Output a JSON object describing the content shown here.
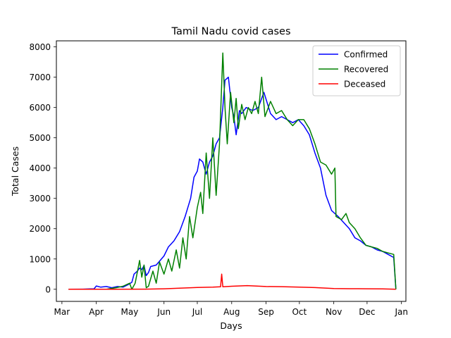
{
  "chart_data": {
    "type": "line",
    "title": "Tamil Nadu covid cases",
    "xlabel": "Days",
    "ylabel": "Total Cases",
    "xlim": [
      "2020-02-25",
      "2021-01-05"
    ],
    "ylim": [
      -400,
      8200
    ],
    "x_ticks": [
      {
        "label": "Mar",
        "date": "2020-03-01"
      },
      {
        "label": "Apr",
        "date": "2020-04-01"
      },
      {
        "label": "May",
        "date": "2020-05-01"
      },
      {
        "label": "Jun",
        "date": "2020-06-01"
      },
      {
        "label": "Jul",
        "date": "2020-07-01"
      },
      {
        "label": "Aug",
        "date": "2020-08-01"
      },
      {
        "label": "Sep",
        "date": "2020-09-01"
      },
      {
        "label": "Oct",
        "date": "2020-10-01"
      },
      {
        "label": "Nov",
        "date": "2020-11-01"
      },
      {
        "label": "Dec",
        "date": "2020-12-01"
      },
      {
        "label": "Jan",
        "date": "2021-01-01"
      }
    ],
    "y_ticks": [
      0,
      1000,
      2000,
      3000,
      4000,
      5000,
      6000,
      7000,
      8000
    ],
    "grid": false,
    "legend_position": "top-right",
    "series": [
      {
        "name": "Confirmed",
        "color": "#0000ff",
        "points": [
          [
            "2020-03-07",
            0
          ],
          [
            "2020-03-20",
            5
          ],
          [
            "2020-03-30",
            15
          ],
          [
            "2020-04-01",
            110
          ],
          [
            "2020-04-05",
            70
          ],
          [
            "2020-04-10",
            90
          ],
          [
            "2020-04-15",
            50
          ],
          [
            "2020-04-20",
            90
          ],
          [
            "2020-04-25",
            70
          ],
          [
            "2020-04-30",
            160
          ],
          [
            "2020-05-03",
            230
          ],
          [
            "2020-05-05",
            500
          ],
          [
            "2020-05-08",
            600
          ],
          [
            "2020-05-10",
            700
          ],
          [
            "2020-05-12",
            650
          ],
          [
            "2020-05-14",
            780
          ],
          [
            "2020-05-16",
            450
          ],
          [
            "2020-05-18",
            550
          ],
          [
            "2020-05-20",
            750
          ],
          [
            "2020-05-25",
            800
          ],
          [
            "2020-06-01",
            1100
          ],
          [
            "2020-06-05",
            1400
          ],
          [
            "2020-06-10",
            1600
          ],
          [
            "2020-06-15",
            1900
          ],
          [
            "2020-06-20",
            2400
          ],
          [
            "2020-06-25",
            3000
          ],
          [
            "2020-06-28",
            3700
          ],
          [
            "2020-07-01",
            3900
          ],
          [
            "2020-07-03",
            4300
          ],
          [
            "2020-07-06",
            4200
          ],
          [
            "2020-07-09",
            3800
          ],
          [
            "2020-07-12",
            4200
          ],
          [
            "2020-07-15",
            4400
          ],
          [
            "2020-07-18",
            4800
          ],
          [
            "2020-07-21",
            5000
          ],
          [
            "2020-07-24",
            6000
          ],
          [
            "2020-07-26",
            6900
          ],
          [
            "2020-07-29",
            7000
          ],
          [
            "2020-08-01",
            6000
          ],
          [
            "2020-08-03",
            5700
          ],
          [
            "2020-08-05",
            5100
          ],
          [
            "2020-08-08",
            5900
          ],
          [
            "2020-08-10",
            5800
          ],
          [
            "2020-08-14",
            6000
          ],
          [
            "2020-08-20",
            5900
          ],
          [
            "2020-08-25",
            6000
          ],
          [
            "2020-08-30",
            6500
          ],
          [
            "2020-09-05",
            5800
          ],
          [
            "2020-09-10",
            5600
          ],
          [
            "2020-09-15",
            5700
          ],
          [
            "2020-09-20",
            5600
          ],
          [
            "2020-09-25",
            5500
          ],
          [
            "2020-09-30",
            5600
          ],
          [
            "2020-10-05",
            5400
          ],
          [
            "2020-10-10",
            5100
          ],
          [
            "2020-10-15",
            4500
          ],
          [
            "2020-10-20",
            4000
          ],
          [
            "2020-10-25",
            3100
          ],
          [
            "2020-10-30",
            2600
          ],
          [
            "2020-11-05",
            2400
          ],
          [
            "2020-11-10",
            2200
          ],
          [
            "2020-11-15",
            2000
          ],
          [
            "2020-11-20",
            1700
          ],
          [
            "2020-11-25",
            1600
          ],
          [
            "2020-11-30",
            1450
          ],
          [
            "2020-12-05",
            1400
          ],
          [
            "2020-12-10",
            1300
          ],
          [
            "2020-12-15",
            1250
          ],
          [
            "2020-12-20",
            1150
          ],
          [
            "2020-12-25",
            1050
          ],
          [
            "2020-12-27",
            0
          ]
        ]
      },
      {
        "name": "Recovered",
        "color": "#008000",
        "points": [
          [
            "2020-03-07",
            0
          ],
          [
            "2020-04-10",
            0
          ],
          [
            "2020-04-20",
            60
          ],
          [
            "2020-04-25",
            100
          ],
          [
            "2020-05-01",
            200
          ],
          [
            "2020-05-03",
            0
          ],
          [
            "2020-05-06",
            200
          ],
          [
            "2020-05-10",
            950
          ],
          [
            "2020-05-12",
            400
          ],
          [
            "2020-05-14",
            800
          ],
          [
            "2020-05-16",
            50
          ],
          [
            "2020-05-18",
            100
          ],
          [
            "2020-05-22",
            600
          ],
          [
            "2020-05-25",
            200
          ],
          [
            "2020-05-28",
            900
          ],
          [
            "2020-06-01",
            500
          ],
          [
            "2020-06-05",
            1000
          ],
          [
            "2020-06-08",
            600
          ],
          [
            "2020-06-12",
            1300
          ],
          [
            "2020-06-15",
            700
          ],
          [
            "2020-06-18",
            1700
          ],
          [
            "2020-06-21",
            1000
          ],
          [
            "2020-06-24",
            2400
          ],
          [
            "2020-06-27",
            1700
          ],
          [
            "2020-07-01",
            2700
          ],
          [
            "2020-07-04",
            3200
          ],
          [
            "2020-07-06",
            2500
          ],
          [
            "2020-07-09",
            4500
          ],
          [
            "2020-07-12",
            3000
          ],
          [
            "2020-07-15",
            5000
          ],
          [
            "2020-07-18",
            3100
          ],
          [
            "2020-07-21",
            4800
          ],
          [
            "2020-07-24",
            7800
          ],
          [
            "2020-07-26",
            6000
          ],
          [
            "2020-07-28",
            4800
          ],
          [
            "2020-07-31",
            6500
          ],
          [
            "2020-08-03",
            5500
          ],
          [
            "2020-08-05",
            6300
          ],
          [
            "2020-08-07",
            5300
          ],
          [
            "2020-08-10",
            6100
          ],
          [
            "2020-08-13",
            5600
          ],
          [
            "2020-08-16",
            6000
          ],
          [
            "2020-08-19",
            5800
          ],
          [
            "2020-08-22",
            6200
          ],
          [
            "2020-08-25",
            5800
          ],
          [
            "2020-08-28",
            7000
          ],
          [
            "2020-08-31",
            5700
          ],
          [
            "2020-09-05",
            6200
          ],
          [
            "2020-09-10",
            5800
          ],
          [
            "2020-09-15",
            5900
          ],
          [
            "2020-09-20",
            5600
          ],
          [
            "2020-09-25",
            5400
          ],
          [
            "2020-09-30",
            5600
          ],
          [
            "2020-10-05",
            5600
          ],
          [
            "2020-10-10",
            5300
          ],
          [
            "2020-10-15",
            4800
          ],
          [
            "2020-10-20",
            4200
          ],
          [
            "2020-10-25",
            4100
          ],
          [
            "2020-10-30",
            3800
          ],
          [
            "2020-11-02",
            4000
          ],
          [
            "2020-11-03",
            2400
          ],
          [
            "2020-11-08",
            2300
          ],
          [
            "2020-11-12",
            2500
          ],
          [
            "2020-11-15",
            2200
          ],
          [
            "2020-11-20",
            2000
          ],
          [
            "2020-11-25",
            1700
          ],
          [
            "2020-11-30",
            1450
          ],
          [
            "2020-12-05",
            1400
          ],
          [
            "2020-12-10",
            1350
          ],
          [
            "2020-12-15",
            1250
          ],
          [
            "2020-12-20",
            1200
          ],
          [
            "2020-12-25",
            1150
          ],
          [
            "2020-12-27",
            0
          ]
        ]
      },
      {
        "name": "Deceased",
        "color": "#ff0000",
        "points": [
          [
            "2020-03-07",
            0
          ],
          [
            "2020-04-15",
            0
          ],
          [
            "2020-05-15",
            5
          ],
          [
            "2020-06-01",
            15
          ],
          [
            "2020-06-15",
            35
          ],
          [
            "2020-07-01",
            60
          ],
          [
            "2020-07-15",
            70
          ],
          [
            "2020-07-22",
            80
          ],
          [
            "2020-07-23",
            500
          ],
          [
            "2020-07-24",
            80
          ],
          [
            "2020-08-01",
            100
          ],
          [
            "2020-08-15",
            120
          ],
          [
            "2020-09-01",
            90
          ],
          [
            "2020-09-15",
            85
          ],
          [
            "2020-10-01",
            70
          ],
          [
            "2020-10-15",
            55
          ],
          [
            "2020-11-01",
            25
          ],
          [
            "2020-11-15",
            18
          ],
          [
            "2020-12-01",
            15
          ],
          [
            "2020-12-15",
            12
          ],
          [
            "2020-12-27",
            0
          ]
        ]
      }
    ]
  }
}
